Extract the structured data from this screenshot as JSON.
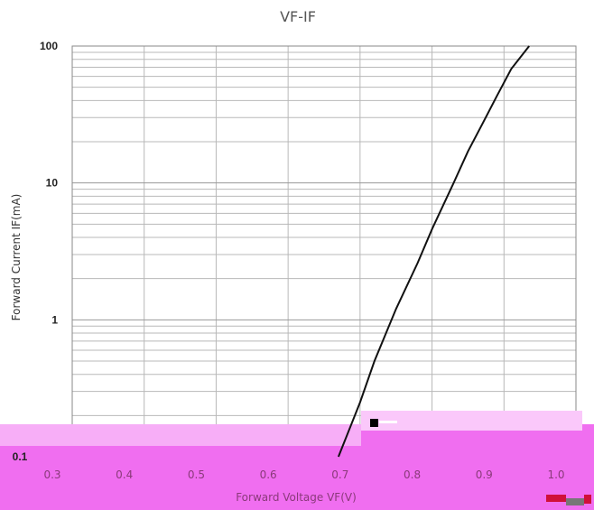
{
  "chart_data": {
    "type": "line",
    "title": "VF-IF",
    "xlabel": "Forward Voltage  VF(V)",
    "ylabel": "Forward Current   IF(mA)",
    "xlim": [
      0.3,
      1.0
    ],
    "ylim": [
      0.1,
      100
    ],
    "y_scale": "log",
    "grid": true,
    "x_ticks": [
      "0.3",
      "0.4",
      "0.5",
      "0.6",
      "0.7",
      "0.8",
      "0.9",
      "1.0"
    ],
    "y_ticks": [
      "0.1",
      "1",
      "10",
      "100"
    ],
    "series": [
      {
        "x": [
          0.67,
          0.7,
          0.72,
          0.75,
          0.78,
          0.8,
          0.83,
          0.85,
          0.87,
          0.89,
          0.91,
          0.935
        ],
        "y": [
          0.1,
          0.25,
          0.5,
          1.2,
          2.6,
          4.6,
          10,
          17,
          27,
          43,
          68,
          100
        ]
      }
    ],
    "colors": {
      "line": "#111111",
      "grid": "#b8b8b8",
      "border": "#888888",
      "overlay": "#f06ef0",
      "overlay_light": "#fac8fa",
      "x_tick_color": "#8a3a7a"
    }
  }
}
